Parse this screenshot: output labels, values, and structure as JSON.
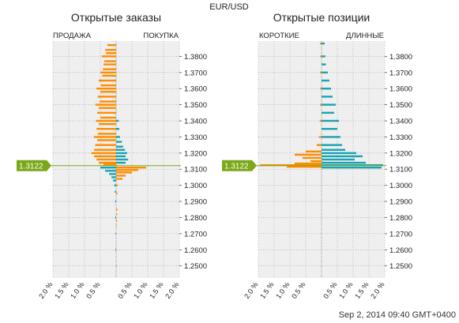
{
  "header": {
    "pair": "EUR/USD"
  },
  "footer": {
    "timestamp": "Sep 2, 2014 09:40 GMT+0400"
  },
  "colors": {
    "orange": "#ff8c00",
    "teal": "#1aa3b3",
    "grid_bg": "#efefef",
    "current": "#7aa818"
  },
  "chart_data": [
    {
      "type": "bar",
      "title": "Открытые заказы",
      "left_label": "ПРОДАЖА",
      "right_label": "ПОКУПКА",
      "current_price": "1.3122",
      "current_price_value": 1.3122,
      "price_range": [
        1.2425,
        1.3895
      ],
      "price_ticks": [
        "1.2500",
        "1.2600",
        "1.2700",
        "1.2800",
        "1.2900",
        "1.3000",
        "1.3100",
        "1.3200",
        "1.3300",
        "1.3400",
        "1.3500",
        "1.3600",
        "1.3700",
        "1.3800"
      ],
      "price_tick_values": [
        1.25,
        1.26,
        1.27,
        1.28,
        1.29,
        1.3,
        1.31,
        1.32,
        1.33,
        1.34,
        1.35,
        1.36,
        1.37,
        1.38
      ],
      "x_ticks": [
        "2.0 %",
        "1.5 %",
        "1.0 %",
        "0.5 %",
        "",
        "0.5 %",
        "1.0 %",
        "1.5 %",
        "2.0 %"
      ],
      "x_range_percent": 2.0,
      "series": [
        {
          "side": "left",
          "color_key": "orange",
          "points": [
            {
              "price": 1.387,
              "pct": 0.28
            },
            {
              "price": 1.384,
              "pct": 0.35
            },
            {
              "price": 1.382,
              "pct": 0.32
            },
            {
              "price": 1.38,
              "pct": 0.45
            },
            {
              "price": 1.377,
              "pct": 0.38
            },
            {
              "price": 1.375,
              "pct": 0.4
            },
            {
              "price": 1.372,
              "pct": 0.42
            },
            {
              "price": 1.37,
              "pct": 0.5
            },
            {
              "price": 1.368,
              "pct": 0.44
            },
            {
              "price": 1.365,
              "pct": 0.55
            },
            {
              "price": 1.362,
              "pct": 0.48
            },
            {
              "price": 1.36,
              "pct": 0.62
            },
            {
              "price": 1.358,
              "pct": 0.5
            },
            {
              "price": 1.355,
              "pct": 0.58
            },
            {
              "price": 1.352,
              "pct": 0.52
            },
            {
              "price": 1.35,
              "pct": 0.66
            },
            {
              "price": 1.348,
              "pct": 0.55
            },
            {
              "price": 1.345,
              "pct": 0.6
            },
            {
              "price": 1.342,
              "pct": 0.5
            },
            {
              "price": 1.34,
              "pct": 0.64
            },
            {
              "price": 1.338,
              "pct": 0.55
            },
            {
              "price": 1.335,
              "pct": 0.62
            },
            {
              "price": 1.332,
              "pct": 0.58
            },
            {
              "price": 1.33,
              "pct": 0.7
            },
            {
              "price": 1.328,
              "pct": 0.6
            },
            {
              "price": 1.325,
              "pct": 0.66
            },
            {
              "price": 1.322,
              "pct": 0.7
            },
            {
              "price": 1.32,
              "pct": 0.78
            },
            {
              "price": 1.318,
              "pct": 0.7
            },
            {
              "price": 1.316,
              "pct": 0.62
            },
            {
              "price": 1.314,
              "pct": 0.55
            },
            {
              "price": 1.313,
              "pct": 0.4
            }
          ]
        },
        {
          "side": "right",
          "color_key": "teal",
          "points": [
            {
              "price": 1.34,
              "pct": 0.08
            },
            {
              "price": 1.335,
              "pct": 0.1
            },
            {
              "price": 1.33,
              "pct": 0.12
            },
            {
              "price": 1.327,
              "pct": 0.18
            },
            {
              "price": 1.324,
              "pct": 0.22
            },
            {
              "price": 1.322,
              "pct": 0.28
            },
            {
              "price": 1.32,
              "pct": 0.35
            },
            {
              "price": 1.318,
              "pct": 0.3
            },
            {
              "price": 1.316,
              "pct": 0.38
            },
            {
              "price": 1.314,
              "pct": 0.3
            }
          ]
        },
        {
          "side": "left",
          "color_key": "teal",
          "points": [
            {
              "price": 1.311,
              "pct": 0.5
            },
            {
              "price": 1.309,
              "pct": 0.35
            },
            {
              "price": 1.307,
              "pct": 0.22
            },
            {
              "price": 1.305,
              "pct": 0.15
            },
            {
              "price": 1.303,
              "pct": 0.1
            },
            {
              "price": 1.3,
              "pct": 0.06
            },
            {
              "price": 1.296,
              "pct": 0.04
            },
            {
              "price": 1.29,
              "pct": 0.03
            },
            {
              "price": 1.28,
              "pct": 0.03
            },
            {
              "price": 1.27,
              "pct": 0.02
            },
            {
              "price": 1.26,
              "pct": 0.02
            },
            {
              "price": 1.26,
              "pct": 0.02
            }
          ]
        },
        {
          "side": "right",
          "color_key": "orange",
          "points": [
            {
              "price": 1.311,
              "pct": 0.95
            },
            {
              "price": 1.3095,
              "pct": 0.7
            },
            {
              "price": 1.308,
              "pct": 0.5
            },
            {
              "price": 1.306,
              "pct": 0.3
            },
            {
              "price": 1.304,
              "pct": 0.2
            },
            {
              "price": 1.3,
              "pct": 0.05
            },
            {
              "price": 1.295,
              "pct": 0.04
            },
            {
              "price": 1.285,
              "pct": 0.04
            },
            {
              "price": 1.282,
              "pct": 0.03
            },
            {
              "price": 1.278,
              "pct": 0.03
            },
            {
              "price": 1.275,
              "pct": 0.02
            },
            {
              "price": 1.25,
              "pct": 0.02
            }
          ]
        }
      ]
    },
    {
      "type": "bar",
      "title": "Открытые позиции",
      "left_label": "КОРОТКИЕ",
      "right_label": "ДЛИННЫЕ",
      "current_price": "1.3122",
      "current_price_value": 1.3122,
      "price_range": [
        1.2425,
        1.3895
      ],
      "price_ticks": [
        "1.2500",
        "1.2600",
        "1.2700",
        "1.2800",
        "1.2900",
        "1.3000",
        "1.3100",
        "1.3200",
        "1.3300",
        "1.3400",
        "1.3500",
        "1.3600",
        "1.3700",
        "1.3800"
      ],
      "price_tick_values": [
        1.25,
        1.26,
        1.27,
        1.28,
        1.29,
        1.3,
        1.31,
        1.32,
        1.33,
        1.34,
        1.35,
        1.36,
        1.37,
        1.38
      ],
      "x_ticks": [
        "2.0 %",
        "1.5 %",
        "1.0 %",
        "0.5 %",
        "",
        "0.5 %",
        "1.0 %",
        "1.5 %",
        "2.0 %"
      ],
      "x_range_percent": 2.0,
      "series": [
        {
          "side": "left",
          "color_key": "orange",
          "points": [
            {
              "price": 1.388,
              "pct": 0.05
            },
            {
              "price": 1.38,
              "pct": 0.04
            },
            {
              "price": 1.37,
              "pct": 0.05
            },
            {
              "price": 1.36,
              "pct": 0.04
            },
            {
              "price": 1.35,
              "pct": 0.05
            },
            {
              "price": 1.34,
              "pct": 0.06
            },
            {
              "price": 1.33,
              "pct": 0.08
            },
            {
              "price": 1.325,
              "pct": 0.15
            },
            {
              "price": 1.321,
              "pct": 0.5
            },
            {
              "price": 1.319,
              "pct": 0.85
            },
            {
              "price": 1.317,
              "pct": 0.6
            },
            {
              "price": 1.315,
              "pct": 0.35
            },
            {
              "price": 1.3135,
              "pct": 0.85
            },
            {
              "price": 1.3125,
              "pct": 1.95
            },
            {
              "price": 1.3115,
              "pct": 1.1
            }
          ]
        },
        {
          "side": "right",
          "color_key": "teal",
          "points": [
            {
              "price": 1.388,
              "pct": 0.1
            },
            {
              "price": 1.38,
              "pct": 0.12
            },
            {
              "price": 1.375,
              "pct": 0.14
            },
            {
              "price": 1.37,
              "pct": 0.2
            },
            {
              "price": 1.365,
              "pct": 0.25
            },
            {
              "price": 1.36,
              "pct": 0.3
            },
            {
              "price": 1.355,
              "pct": 0.35
            },
            {
              "price": 1.35,
              "pct": 0.45
            },
            {
              "price": 1.345,
              "pct": 0.4
            },
            {
              "price": 1.34,
              "pct": 0.55
            },
            {
              "price": 1.335,
              "pct": 0.5
            },
            {
              "price": 1.33,
              "pct": 0.6
            },
            {
              "price": 1.325,
              "pct": 0.65
            },
            {
              "price": 1.322,
              "pct": 0.75
            },
            {
              "price": 1.32,
              "pct": 1.1
            },
            {
              "price": 1.318,
              "pct": 1.3
            },
            {
              "price": 1.316,
              "pct": 1.05
            },
            {
              "price": 1.314,
              "pct": 1.4
            },
            {
              "price": 1.3125,
              "pct": 1.95
            },
            {
              "price": 1.311,
              "pct": 1.9
            }
          ]
        }
      ]
    }
  ]
}
